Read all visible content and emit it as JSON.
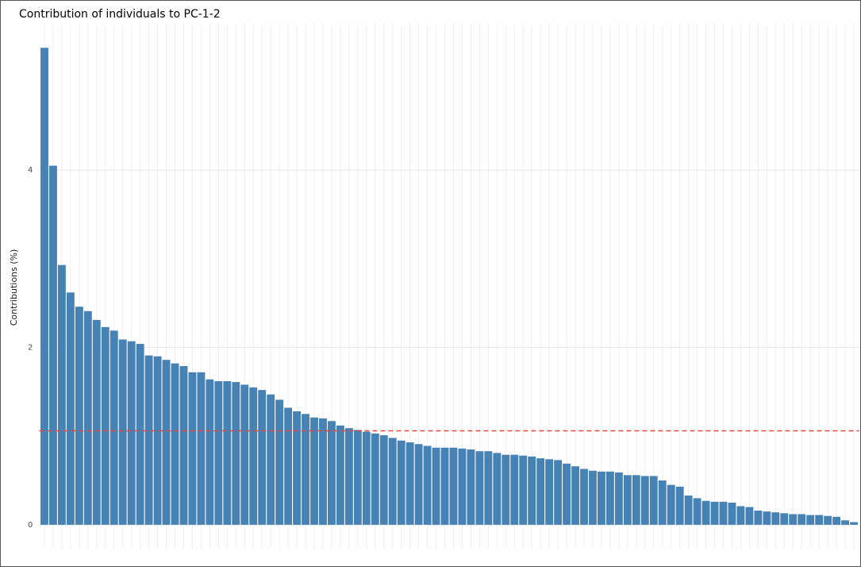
{
  "chart_data": {
    "type": "bar",
    "title": "Contribution of individuals to PC-1-2",
    "y_label": "Contributions (%)",
    "categories": [
      null,
      null,
      null,
      null,
      null,
      null,
      null,
      null,
      null,
      null,
      null,
      null,
      null,
      null,
      null,
      null,
      null,
      null,
      null,
      null,
      null,
      null,
      null,
      null,
      null,
      null,
      null,
      null,
      null,
      null,
      null,
      null,
      null,
      null,
      null,
      null,
      null,
      null,
      null,
      null,
      null,
      null,
      null,
      null,
      null,
      null,
      null,
      null,
      null,
      null,
      null,
      null,
      null,
      null,
      null,
      null,
      null,
      null,
      null,
      null,
      null,
      null,
      null,
      null,
      null,
      null,
      null,
      null,
      null,
      null,
      null,
      null,
      null,
      null,
      null,
      null,
      null,
      null,
      null,
      null,
      null,
      null,
      null,
      null,
      null,
      null,
      null,
      null,
      null,
      null,
      null,
      null,
      null,
      null
    ],
    "values": [
      5.38,
      4.05,
      2.93,
      2.62,
      2.46,
      2.41,
      2.31,
      2.23,
      2.19,
      2.09,
      2.07,
      2.04,
      1.91,
      1.9,
      1.86,
      1.82,
      1.79,
      1.72,
      1.72,
      1.64,
      1.62,
      1.62,
      1.61,
      1.58,
      1.55,
      1.52,
      1.47,
      1.41,
      1.32,
      1.28,
      1.25,
      1.21,
      1.2,
      1.17,
      1.12,
      1.09,
      1.07,
      1.05,
      1.03,
      1.01,
      0.98,
      0.95,
      0.93,
      0.91,
      0.89,
      0.87,
      0.87,
      0.87,
      0.86,
      0.85,
      0.83,
      0.83,
      0.81,
      0.79,
      0.79,
      0.78,
      0.77,
      0.75,
      0.74,
      0.73,
      0.69,
      0.66,
      0.63,
      0.61,
      0.6,
      0.6,
      0.59,
      0.56,
      0.56,
      0.55,
      0.55,
      0.5,
      0.45,
      0.43,
      0.33,
      0.3,
      0.27,
      0.26,
      0.26,
      0.25,
      0.21,
      0.2,
      0.16,
      0.15,
      0.14,
      0.13,
      0.12,
      0.12,
      0.11,
      0.11,
      0.1,
      0.09,
      0.05,
      0.03
    ],
    "color": "#4682b4",
    "reference_line": 1.06,
    "reference_color": "#e8483f",
    "ylim": [
      -0.27,
      5.65
    ],
    "yticks": [
      0,
      2,
      4
    ],
    "grid": true
  }
}
